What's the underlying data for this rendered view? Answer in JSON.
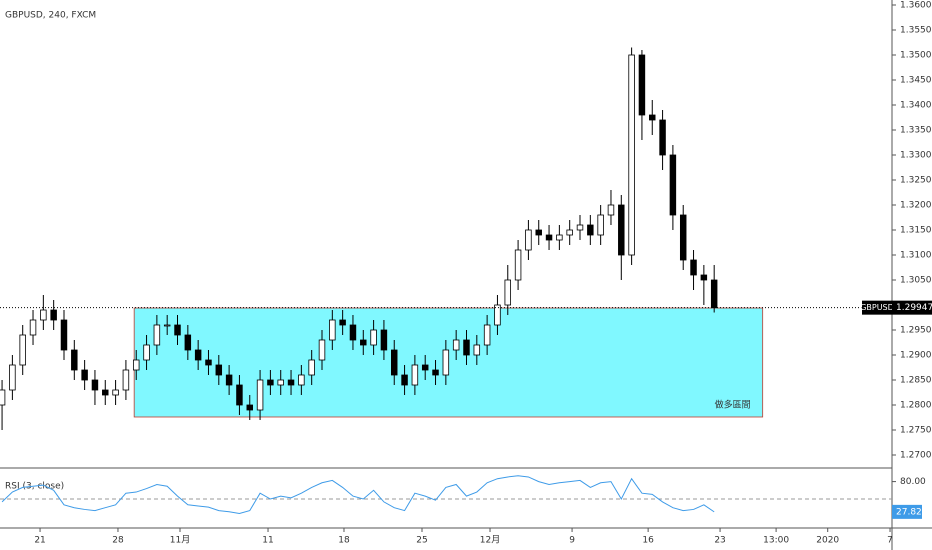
{
  "chart_data": [
    {
      "type": "candlestick",
      "title": "GBPUSD, 240, FXCM",
      "series": [
        {
          "name": "GBPUSD",
          "up_color": "#ffffff",
          "down_color": "#000000",
          "open": [
            1.28,
            1.283,
            1.288,
            1.294,
            1.297,
            1.299,
            1.297,
            1.291,
            1.287,
            1.285,
            1.283,
            1.282,
            1.283,
            1.287,
            1.289,
            1.292,
            1.296,
            1.296,
            1.294,
            1.291,
            1.289,
            1.288,
            1.286,
            1.284,
            1.28,
            1.279,
            1.285,
            1.284,
            1.285,
            1.284,
            1.286,
            1.289,
            1.293,
            1.297,
            1.296,
            1.293,
            1.292,
            1.295,
            1.291,
            1.286,
            1.284,
            1.288,
            1.287,
            1.286,
            1.291,
            1.293,
            1.29,
            1.292,
            1.296,
            1.3,
            1.305,
            1.311,
            1.315,
            1.314,
            1.313,
            1.314,
            1.315,
            1.316,
            1.314,
            1.318,
            1.32,
            1.31,
            1.35,
            1.338,
            1.337,
            1.33,
            1.318,
            1.309,
            1.306,
            1.305
          ],
          "high": [
            1.285,
            1.29,
            1.296,
            1.299,
            1.302,
            1.301,
            1.299,
            1.293,
            1.289,
            1.287,
            1.285,
            1.285,
            1.289,
            1.291,
            1.294,
            1.298,
            1.298,
            1.298,
            1.296,
            1.293,
            1.291,
            1.29,
            1.288,
            1.286,
            1.282,
            1.287,
            1.287,
            1.287,
            1.287,
            1.288,
            1.291,
            1.295,
            1.299,
            1.299,
            1.298,
            1.295,
            1.297,
            1.297,
            1.293,
            1.288,
            1.29,
            1.29,
            1.289,
            1.293,
            1.295,
            1.295,
            1.294,
            1.298,
            1.302,
            1.308,
            1.313,
            1.317,
            1.317,
            1.316,
            1.316,
            1.317,
            1.318,
            1.318,
            1.32,
            1.323,
            1.322,
            1.3515,
            1.351,
            1.341,
            1.339,
            1.332,
            1.32,
            1.311,
            1.308,
            1.308
          ],
          "low": [
            1.275,
            1.281,
            1.286,
            1.292,
            1.295,
            1.295,
            1.289,
            1.285,
            1.283,
            1.28,
            1.28,
            1.28,
            1.281,
            1.285,
            1.287,
            1.29,
            1.294,
            1.292,
            1.289,
            1.287,
            1.286,
            1.284,
            1.282,
            1.278,
            1.277,
            1.277,
            1.282,
            1.282,
            1.282,
            1.282,
            1.284,
            1.287,
            1.291,
            1.294,
            1.291,
            1.29,
            1.29,
            1.289,
            1.284,
            1.282,
            1.282,
            1.285,
            1.284,
            1.284,
            1.289,
            1.288,
            1.288,
            1.29,
            1.294,
            1.298,
            1.303,
            1.309,
            1.312,
            1.311,
            1.311,
            1.312,
            1.313,
            1.312,
            1.312,
            1.316,
            1.305,
            1.308,
            1.333,
            1.334,
            1.327,
            1.315,
            1.307,
            1.303,
            1.3,
            1.2985
          ],
          "close": [
            1.283,
            1.288,
            1.294,
            1.297,
            1.299,
            1.297,
            1.291,
            1.287,
            1.285,
            1.283,
            1.282,
            1.283,
            1.287,
            1.289,
            1.292,
            1.296,
            1.296,
            1.294,
            1.291,
            1.289,
            1.288,
            1.286,
            1.284,
            1.28,
            1.279,
            1.285,
            1.284,
            1.285,
            1.284,
            1.286,
            1.289,
            1.293,
            1.297,
            1.296,
            1.293,
            1.292,
            1.295,
            1.291,
            1.286,
            1.284,
            1.288,
            1.287,
            1.286,
            1.291,
            1.293,
            1.29,
            1.292,
            1.296,
            1.3,
            1.305,
            1.311,
            1.315,
            1.314,
            1.313,
            1.314,
            1.315,
            1.316,
            1.314,
            1.318,
            1.32,
            1.31,
            1.35,
            1.338,
            1.337,
            1.33,
            1.318,
            1.309,
            1.306,
            1.305,
            1.29947
          ]
        }
      ],
      "ylim": [
        1.2674,
        1.361
      ],
      "yticks": [
        {
          "value": 1.27,
          "label": "1.27000"
        },
        {
          "value": 1.275,
          "label": "1.27500"
        },
        {
          "value": 1.28,
          "label": "1.28000"
        },
        {
          "value": 1.285,
          "label": "1.28500"
        },
        {
          "value": 1.29,
          "label": "1.29000"
        },
        {
          "value": 1.295,
          "label": "1.29500"
        },
        {
          "value": 1.3,
          "label": "1.30000"
        },
        {
          "value": 1.305,
          "label": "1.30500"
        },
        {
          "value": 1.31,
          "label": "1.31000"
        },
        {
          "value": 1.315,
          "label": "1.31500"
        },
        {
          "value": 1.32,
          "label": "1.32000"
        },
        {
          "value": 1.325,
          "label": "1.32500"
        },
        {
          "value": 1.33,
          "label": "1.33000"
        },
        {
          "value": 1.335,
          "label": "1.33500"
        },
        {
          "value": 1.34,
          "label": "1.34000"
        },
        {
          "value": 1.345,
          "label": "1.34500"
        },
        {
          "value": 1.35,
          "label": "1.35000"
        },
        {
          "value": 1.355,
          "label": "1.35500"
        },
        {
          "value": 1.36,
          "label": "1.36000"
        }
      ],
      "xlim": [
        -0.2,
        86.23
      ],
      "xticks": [
        {
          "value": 3.68,
          "label": "21"
        },
        {
          "value": 11.23,
          "label": "28"
        },
        {
          "value": 17.24,
          "label": "11月"
        },
        {
          "value": 25.77,
          "label": "11"
        },
        {
          "value": 33.13,
          "label": "18"
        },
        {
          "value": 40.69,
          "label": "25"
        },
        {
          "value": 47.28,
          "label": "12月"
        },
        {
          "value": 55.23,
          "label": "9"
        },
        {
          "value": 62.6,
          "label": "16"
        },
        {
          "value": 69.57,
          "label": "23"
        },
        {
          "value": 75.0,
          "label": "13:00"
        },
        {
          "value": 80.0,
          "label": "2020"
        },
        {
          "value": 86.04,
          "label": "7"
        }
      ],
      "zone": {
        "label": "做多區間",
        "color": "#80f8ff",
        "x": [
          12.8,
          73.7
        ],
        "y": [
          1.2776,
          1.2994
        ]
      }
    },
    {
      "type": "line",
      "title": "RSI (3, close)",
      "color": "#3e9be8",
      "values": [
        45,
        62,
        70,
        72,
        74,
        65,
        40,
        35,
        32,
        30,
        35,
        40,
        60,
        62,
        68,
        75,
        72,
        55,
        40,
        38,
        36,
        30,
        28,
        25,
        30,
        60,
        50,
        55,
        52,
        60,
        70,
        78,
        82,
        70,
        55,
        50,
        65,
        45,
        35,
        30,
        60,
        55,
        48,
        70,
        75,
        55,
        62,
        78,
        85,
        88,
        90,
        88,
        80,
        75,
        78,
        80,
        82,
        70,
        78,
        80,
        50,
        85,
        60,
        58,
        45,
        35,
        30,
        32,
        40,
        27.82
      ],
      "ylim": [
        0,
        100
      ],
      "yticks": [
        {
          "value": 80,
          "label": "80.00"
        }
      ],
      "hlines": [
        50
      ]
    }
  ]
}
